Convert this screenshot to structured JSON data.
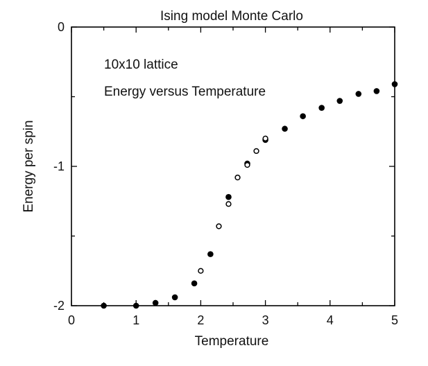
{
  "chart_data": {
    "type": "scatter",
    "title": "Ising model  Monte Carlo",
    "xlabel": "Temperature",
    "ylabel": "Energy per spin",
    "xlim": [
      0,
      5
    ],
    "ylim": [
      -2,
      0
    ],
    "xticks": [
      0,
      1,
      2,
      3,
      4,
      5
    ],
    "xtick_labels": [
      "0",
      "1",
      "2",
      "3",
      "4",
      "5"
    ],
    "yticks": [
      -2,
      -1,
      0
    ],
    "ytick_labels": [
      "-2",
      "-1",
      "0"
    ],
    "grid": false,
    "annotations": [
      "10x10 lattice",
      "Energy versus Temperature"
    ],
    "series": [
      {
        "marker": "filled-circle",
        "x": [
          0.5,
          1.0,
          1.3,
          1.6,
          1.9,
          2.15,
          2.43,
          2.72,
          3.0,
          3.3,
          3.58,
          3.87,
          4.15,
          4.44,
          4.72,
          5.0
        ],
        "y": [
          -2.0,
          -2.0,
          -1.98,
          -1.94,
          -1.84,
          -1.63,
          -1.22,
          -0.98,
          -0.81,
          -0.73,
          -0.64,
          -0.58,
          -0.53,
          -0.48,
          -0.46,
          -0.41
        ]
      },
      {
        "marker": "open-circle",
        "x": [
          2.0,
          2.28,
          2.43,
          2.57,
          2.72,
          2.86,
          3.0
        ],
        "y": [
          -1.75,
          -1.43,
          -1.27,
          -1.08,
          -0.99,
          -0.89,
          -0.8
        ]
      }
    ]
  }
}
